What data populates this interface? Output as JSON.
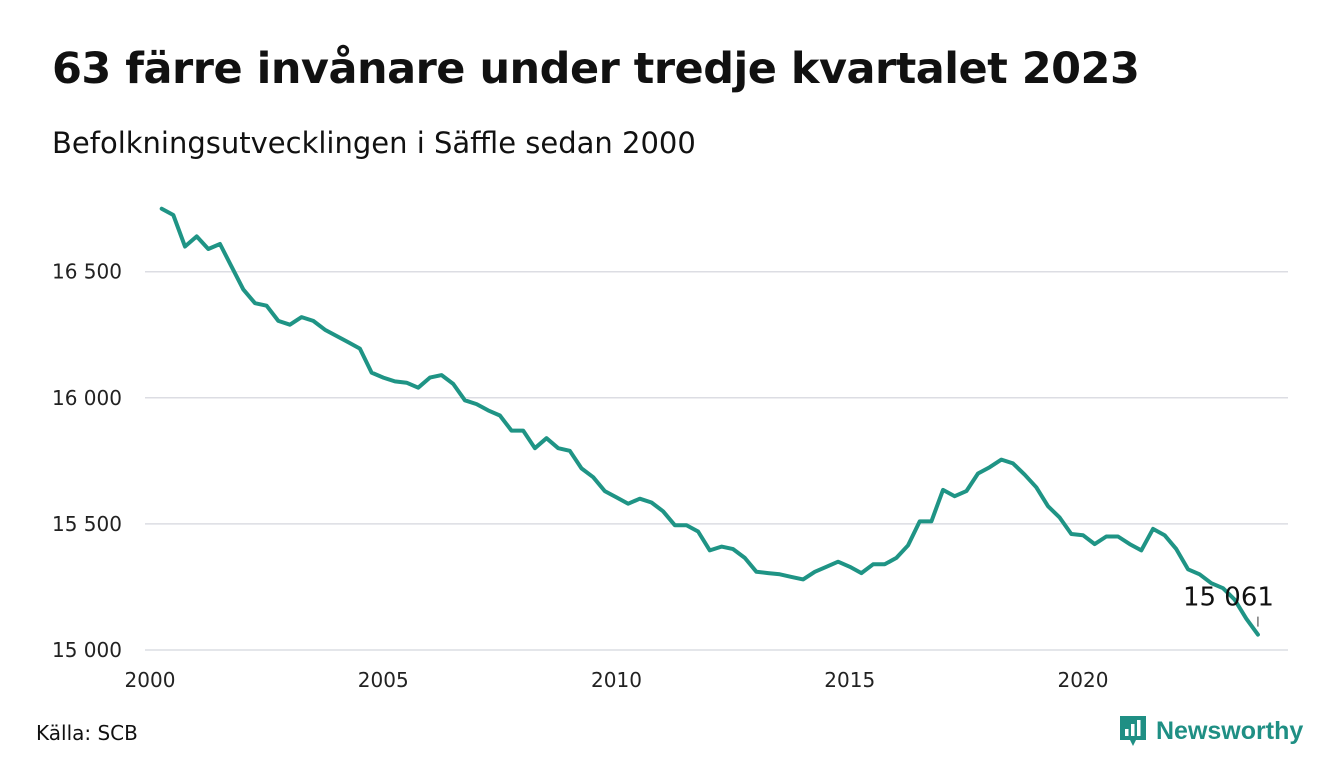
{
  "title": "63 färre invånare under tredje kvartalet 2023",
  "subtitle": "Befolkningsutvecklingen i Säffle sedan 2000",
  "source": "Källa: SCB",
  "brand": "Newsworthy",
  "colors": {
    "line": "#1f9485",
    "grid": "#dcdde3",
    "brand": "#1f8f84"
  },
  "chart_data": {
    "type": "line",
    "title": "63 färre invånare under tredje kvartalet 2023",
    "subtitle": "Befolkningsutvecklingen i Säffle sedan 2000",
    "xlabel": "",
    "ylabel": "",
    "x_ticks": [
      2000,
      2005,
      2010,
      2015,
      2020
    ],
    "y_ticks": [
      {
        "value": 15000,
        "label": "15 000"
      },
      {
        "value": 15500,
        "label": "15 500"
      },
      {
        "value": 16000,
        "label": "16 000"
      },
      {
        "value": 16500,
        "label": "16 500"
      }
    ],
    "xlim": [
      2000,
      2024.4
    ],
    "ylim": [
      14980,
      16780
    ],
    "grid": true,
    "end_label": "15 061",
    "series": [
      {
        "name": "",
        "points": [
          [
            2000.25,
            16750
          ],
          [
            2000.5,
            16725
          ],
          [
            2000.75,
            16600
          ],
          [
            2001.0,
            16640
          ],
          [
            2001.25,
            16590
          ],
          [
            2001.5,
            16610
          ],
          [
            2001.75,
            16520
          ],
          [
            2002.0,
            16430
          ],
          [
            2002.25,
            16375
          ],
          [
            2002.5,
            16365
          ],
          [
            2002.75,
            16305
          ],
          [
            2003.0,
            16290
          ],
          [
            2003.25,
            16320
          ],
          [
            2003.5,
            16305
          ],
          [
            2003.75,
            16270
          ],
          [
            2004.0,
            16245
          ],
          [
            2004.25,
            16220
          ],
          [
            2004.5,
            16195
          ],
          [
            2004.75,
            16100
          ],
          [
            2005.0,
            16080
          ],
          [
            2005.25,
            16065
          ],
          [
            2005.5,
            16060
          ],
          [
            2005.75,
            16040
          ],
          [
            2006.0,
            16080
          ],
          [
            2006.25,
            16090
          ],
          [
            2006.5,
            16055
          ],
          [
            2006.75,
            15990
          ],
          [
            2007.0,
            15975
          ],
          [
            2007.25,
            15950
          ],
          [
            2007.5,
            15930
          ],
          [
            2007.75,
            15870
          ],
          [
            2008.0,
            15870
          ],
          [
            2008.25,
            15800
          ],
          [
            2008.5,
            15840
          ],
          [
            2008.75,
            15800
          ],
          [
            2009.0,
            15790
          ],
          [
            2009.25,
            15720
          ],
          [
            2009.5,
            15685
          ],
          [
            2009.75,
            15630
          ],
          [
            2010.0,
            15605
          ],
          [
            2010.25,
            15580
          ],
          [
            2010.5,
            15600
          ],
          [
            2010.75,
            15585
          ],
          [
            2011.0,
            15550
          ],
          [
            2011.25,
            15495
          ],
          [
            2011.5,
            15495
          ],
          [
            2011.75,
            15470
          ],
          [
            2012.0,
            15395
          ],
          [
            2012.25,
            15410
          ],
          [
            2012.5,
            15400
          ],
          [
            2012.75,
            15365
          ],
          [
            2013.0,
            15310
          ],
          [
            2013.25,
            15305
          ],
          [
            2013.5,
            15300
          ],
          [
            2013.75,
            15290
          ],
          [
            2014.0,
            15280
          ],
          [
            2014.25,
            15310
          ],
          [
            2014.5,
            15330
          ],
          [
            2014.75,
            15350
          ],
          [
            2015.0,
            15330
          ],
          [
            2015.25,
            15305
          ],
          [
            2015.5,
            15340
          ],
          [
            2015.75,
            15340
          ],
          [
            2016.0,
            15365
          ],
          [
            2016.25,
            15415
          ],
          [
            2016.5,
            15510
          ],
          [
            2016.75,
            15510
          ],
          [
            2017.0,
            15635
          ],
          [
            2017.25,
            15610
          ],
          [
            2017.5,
            15630
          ],
          [
            2017.75,
            15700
          ],
          [
            2018.0,
            15725
          ],
          [
            2018.25,
            15755
          ],
          [
            2018.5,
            15740
          ],
          [
            2018.75,
            15695
          ],
          [
            2019.0,
            15645
          ],
          [
            2019.25,
            15570
          ],
          [
            2019.5,
            15525
          ],
          [
            2019.75,
            15460
          ],
          [
            2020.0,
            15455
          ],
          [
            2020.25,
            15420
          ],
          [
            2020.5,
            15450
          ],
          [
            2020.75,
            15450
          ],
          [
            2021.0,
            15420
          ],
          [
            2021.25,
            15395
          ],
          [
            2021.5,
            15480
          ],
          [
            2021.75,
            15455
          ],
          [
            2022.0,
            15400
          ],
          [
            2022.25,
            15320
          ],
          [
            2022.5,
            15300
          ],
          [
            2022.75,
            15265
          ],
          [
            2023.0,
            15245
          ],
          [
            2023.25,
            15200
          ],
          [
            2023.5,
            15124
          ],
          [
            2023.75,
            15061
          ]
        ]
      }
    ]
  }
}
